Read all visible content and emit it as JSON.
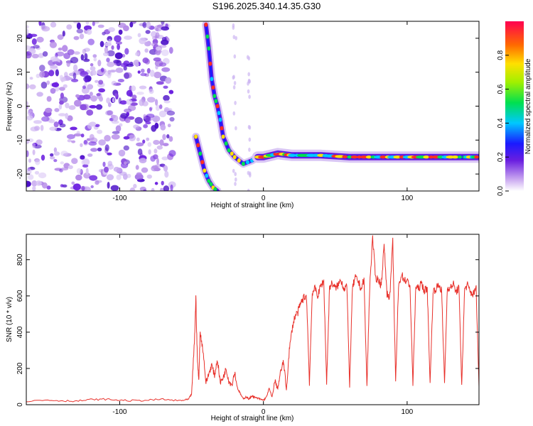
{
  "title": "S196.2025.340.14.35.G30",
  "chart_data": [
    {
      "type": "heatmap",
      "xlabel": "Height of straight line (km)",
      "ylabel": "Frequency (Hz)",
      "xlim": [
        -165,
        150
      ],
      "ylim": [
        -25,
        25
      ],
      "x_ticks": [
        -100,
        0,
        100
      ],
      "y_ticks": [
        20,
        10,
        0,
        -10,
        -20
      ],
      "colorbar": {
        "label": "Normalized spectral amplitude",
        "range": [
          0,
          1
        ],
        "ticks": [
          "0.0",
          "0.2",
          "0.4",
          "0.6",
          "0.8"
        ]
      },
      "ridges": [
        {
          "x": [
            -47,
            -44,
            -41,
            -38,
            -35,
            -32
          ],
          "y": [
            -9,
            -14,
            -19,
            -22,
            -24,
            -25
          ]
        },
        {
          "x": [
            -40,
            -38,
            -36,
            -34,
            -32,
            -30,
            -28,
            -24,
            -20,
            -14,
            -8,
            -4
          ],
          "y": [
            24,
            17,
            8,
            3,
            0,
            -4,
            -9,
            -13,
            -15,
            -17,
            -16,
            -15
          ]
        },
        {
          "x": [
            -4,
            0,
            10,
            20,
            40,
            60,
            80,
            100,
            120,
            140,
            150
          ],
          "y": [
            -15,
            -15,
            -14,
            -14.5,
            -14.5,
            -15,
            -15,
            -15,
            -15,
            -15,
            -15
          ]
        }
      ]
    },
    {
      "type": "line",
      "xlabel": "Height of straight line (km)",
      "ylabel": "SNR (10 * v/v)",
      "xlim": [
        -165,
        150
      ],
      "ylim": [
        0,
        940
      ],
      "x_ticks": [
        -100,
        0,
        100
      ],
      "y_ticks": [
        0,
        200,
        400,
        600,
        800
      ],
      "color": "#e8302a",
      "x": [
        -165,
        -150,
        -140,
        -130,
        -120,
        -110,
        -100,
        -90,
        -80,
        -70,
        -60,
        -55,
        -52,
        -50,
        -48,
        -47,
        -46,
        -45,
        -44,
        -42,
        -40,
        -38,
        -36,
        -34,
        -32,
        -30,
        -28,
        -26,
        -24,
        -22,
        -20,
        -18,
        -16,
        -14,
        -12,
        -10,
        -8,
        -6,
        -4,
        -2,
        0,
        2,
        4,
        6,
        8,
        10,
        12,
        14,
        16,
        18,
        20,
        22,
        24,
        26,
        28,
        30,
        32,
        34,
        36,
        38,
        40,
        42,
        44,
        46,
        48,
        50,
        52,
        54,
        56,
        58,
        60,
        62,
        64,
        66,
        68,
        70,
        72,
        74,
        76,
        78,
        80,
        82,
        84,
        86,
        88,
        90,
        92,
        94,
        96,
        98,
        100,
        102,
        104,
        106,
        108,
        110,
        112,
        114,
        116,
        118,
        120,
        122,
        124,
        126,
        128,
        130,
        132,
        134,
        136,
        138,
        140,
        142,
        144,
        146,
        148,
        150
      ],
      "values": [
        20,
        25,
        22,
        20,
        28,
        30,
        25,
        22,
        25,
        30,
        22,
        25,
        30,
        60,
        350,
        590,
        260,
        130,
        400,
        300,
        120,
        170,
        220,
        160,
        250,
        120,
        150,
        200,
        130,
        110,
        180,
        90,
        60,
        30,
        45,
        30,
        50,
        40,
        35,
        30,
        25,
        40,
        90,
        40,
        130,
        90,
        180,
        240,
        80,
        300,
        420,
        490,
        510,
        560,
        590,
        600,
        120,
        620,
        640,
        600,
        660,
        680,
        120,
        650,
        670,
        640,
        660,
        690,
        640,
        660,
        110,
        650,
        700,
        680,
        640,
        690,
        100,
        660,
        920,
        700,
        690,
        660,
        880,
        610,
        600,
        900,
        120,
        650,
        720,
        690,
        680,
        660,
        110,
        650,
        640,
        670,
        630,
        640,
        120,
        620,
        640,
        660,
        630,
        120,
        650,
        640,
        670,
        620,
        650,
        110,
        640,
        660,
        620,
        610,
        640,
        100
      ]
    }
  ]
}
